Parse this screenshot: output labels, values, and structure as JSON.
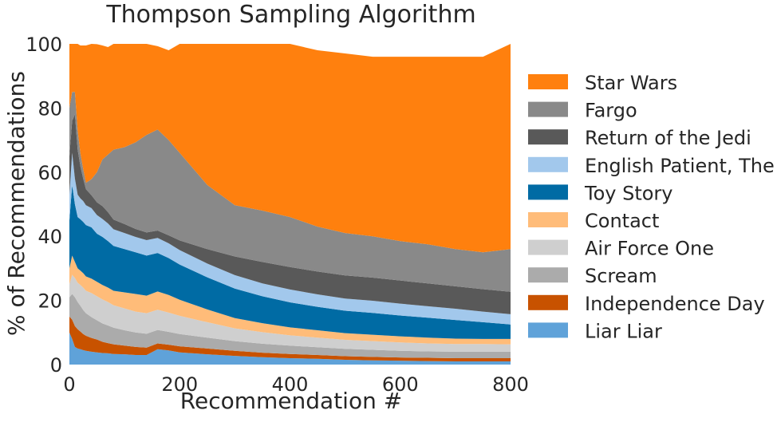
{
  "chart_data": {
    "type": "area",
    "stacked": true,
    "title": "Thompson Sampling Algorithm",
    "xlabel": "Recommendation #",
    "ylabel": "% of Recommendations",
    "xlim": [
      0,
      800
    ],
    "ylim": [
      0,
      100
    ],
    "x_ticks": [
      "0",
      "200",
      "400",
      "600",
      "800"
    ],
    "y_ticks": [
      "0",
      "20",
      "40",
      "60",
      "80",
      "100"
    ],
    "grid": false,
    "legend_position": "right",
    "x": [
      0,
      5,
      10,
      15,
      20,
      25,
      30,
      40,
      50,
      60,
      70,
      80,
      100,
      120,
      140,
      160,
      180,
      200,
      250,
      300,
      350,
      400,
      450,
      500,
      550,
      600,
      650,
      700,
      750,
      800
    ],
    "series": [
      {
        "name": "Liar Liar",
        "color": "#5fa2d9",
        "values": [
          10,
          8,
          5.5,
          5,
          4.8,
          4.5,
          4.3,
          4,
          3.8,
          3.6,
          3.5,
          3.3,
          3.2,
          3,
          3,
          4.8,
          4.4,
          3.8,
          3.2,
          2.7,
          2.3,
          2,
          1.8,
          1.5,
          1.3,
          1.2,
          1.1,
          1.0,
          1.0,
          1.0
        ]
      },
      {
        "name": "Independence Day",
        "color": "#c85200",
        "values": [
          5,
          6,
          6.5,
          6,
          5.5,
          5,
          4.7,
          4.3,
          4,
          3.5,
          3.2,
          3,
          2.7,
          2.5,
          2.3,
          1.8,
          1.8,
          1.9,
          1.8,
          1.6,
          1.4,
          1.3,
          1.2,
          1.1,
          1.1,
          1.0,
          1.0,
          1.0,
          1.0,
          1.0
        ]
      },
      {
        "name": "Scream",
        "color": "#ababab",
        "values": [
          6,
          8,
          9,
          8.5,
          8,
          7.5,
          7,
          6.5,
          6,
          5.7,
          5.5,
          5.2,
          4.8,
          4.5,
          4.3,
          4.2,
          4,
          3.8,
          3.4,
          3,
          2.8,
          2.6,
          2.4,
          2.3,
          2.2,
          2.1,
          2.0,
          2.0,
          2.0,
          2.0
        ]
      },
      {
        "name": "Air Force One",
        "color": "#cfcfcf",
        "values": [
          4,
          6,
          6,
          6,
          6.5,
          7,
          7,
          7.5,
          7.5,
          7.5,
          7.3,
          7,
          6.8,
          6.5,
          6.4,
          6.3,
          6,
          5.7,
          4.8,
          4,
          3.6,
          3.2,
          3,
          2.8,
          2.7,
          2.6,
          2.5,
          2.4,
          2.4,
          2.3
        ]
      },
      {
        "name": "Contact",
        "color": "#ffbc79",
        "values": [
          5,
          6,
          5,
          4.5,
          4.5,
          4.5,
          4.5,
          4.5,
          4.5,
          4.5,
          4.5,
          4.5,
          5,
          5.5,
          5.5,
          5.7,
          5.5,
          5,
          4,
          3.2,
          2.8,
          2.5,
          2.3,
          2.1,
          2,
          1.9,
          1.8,
          1.7,
          1.6,
          1.7
        ]
      },
      {
        "name": "Toy Story",
        "color": "#006ba4",
        "values": [
          15,
          22,
          18,
          16,
          16,
          16,
          16,
          16,
          15,
          15,
          14.5,
          14,
          13.5,
          13,
          12.5,
          12,
          11.5,
          11,
          10,
          9.2,
          8.4,
          7.8,
          7.3,
          7,
          6.8,
          6.5,
          6.2,
          5.8,
          5.2,
          4.5
        ]
      },
      {
        "name": "English Patient, The",
        "color": "#a2c8ec",
        "values": [
          8,
          10,
          8,
          7,
          6.5,
          6.5,
          6.2,
          6,
          5.8,
          5.6,
          5.5,
          5.2,
          5,
          4.8,
          4.8,
          4.7,
          4.6,
          4.5,
          4.3,
          4.2,
          4,
          4,
          3.9,
          3.8,
          3.8,
          3.7,
          3.6,
          3.5,
          3.3,
          3.2
        ]
      },
      {
        "name": "Return of the Jedi",
        "color": "#595959",
        "values": [
          12,
          10,
          20,
          14,
          10,
          7,
          5,
          4,
          4,
          4,
          3.5,
          3,
          2.8,
          2.5,
          2.4,
          2.3,
          2.5,
          3,
          4.5,
          5.8,
          6.7,
          7,
          7.1,
          7.2,
          7.2,
          7.2,
          7.1,
          7,
          7,
          7
        ]
      },
      {
        "name": "Fargo",
        "color": "#898989",
        "values": [
          15,
          9,
          7,
          6,
          4,
          3,
          2,
          5,
          9.4,
          14.6,
          18,
          21.8,
          24,
          27,
          30.4,
          31.5,
          29.7,
          27.3,
          20,
          16,
          16,
          15.6,
          14,
          13.2,
          12.9,
          12.3,
          12.2,
          11.6,
          11.5,
          13.3
        ]
      },
      {
        "name": "Star Wars",
        "color": "#ff800e",
        "values": [
          20,
          15,
          15,
          27,
          33.7,
          38.5,
          42.8,
          44.2,
          39.9,
          35.5,
          33.5,
          33,
          32.2,
          32.2,
          29.9,
          26,
          28,
          34,
          44,
          51,
          53,
          54,
          55,
          56,
          56,
          57.5,
          58.5,
          60,
          61,
          64
        ]
      }
    ]
  }
}
